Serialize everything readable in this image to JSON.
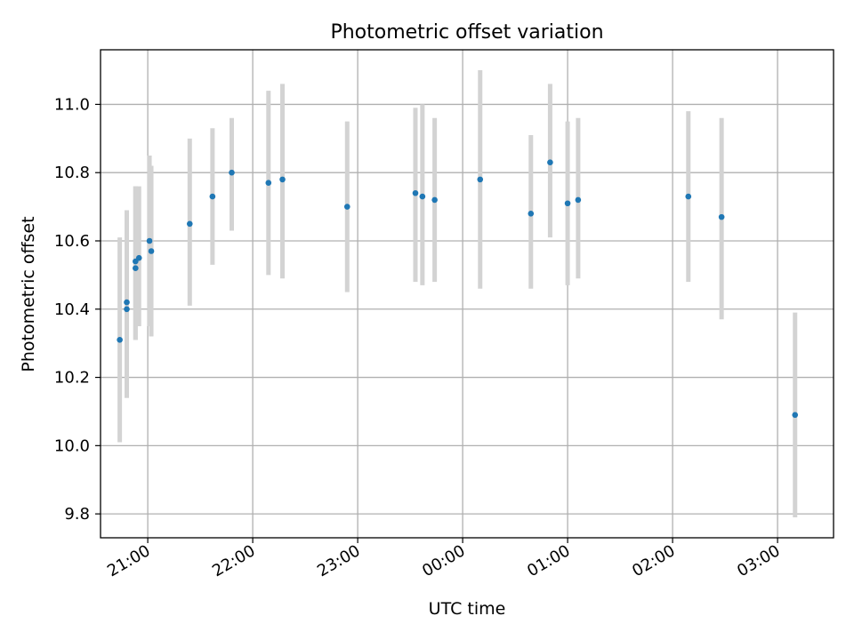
{
  "chart_data": {
    "type": "scatter",
    "title": "Photometric offset variation",
    "xlabel": "UTC time",
    "ylabel": "Photometric offset",
    "grid": true,
    "xlim": [
      "20:33",
      "03:32"
    ],
    "ylim": [
      9.73,
      11.16
    ],
    "x_ticks": [
      "21:00",
      "22:00",
      "23:00",
      "00:00",
      "01:00",
      "02:00",
      "03:00"
    ],
    "y_ticks": [
      "9.8",
      "10.0",
      "10.2",
      "10.4",
      "10.6",
      "10.8",
      "11.0"
    ],
    "colors": {
      "point": "#1f77b4",
      "errorbar": "#d3d3d3"
    },
    "series": [
      {
        "points": [
          {
            "x": "20:44",
            "y": 10.31,
            "ylow": 10.01,
            "yhigh": 10.61
          },
          {
            "x": "20:48",
            "y": 10.42,
            "ylow": 10.14,
            "yhigh": 10.69
          },
          {
            "x": "20:48",
            "y": 10.4,
            "ylow": 10.14,
            "yhigh": 10.67
          },
          {
            "x": "20:53",
            "y": 10.52,
            "ylow": 10.31,
            "yhigh": 10.76
          },
          {
            "x": "20:53",
            "y": 10.54,
            "ylow": 10.31,
            "yhigh": 10.76
          },
          {
            "x": "20:55",
            "y": 10.55,
            "ylow": 10.35,
            "yhigh": 10.76
          },
          {
            "x": "21:01",
            "y": 10.6,
            "ylow": 10.35,
            "yhigh": 10.85
          },
          {
            "x": "21:02",
            "y": 10.57,
            "ylow": 10.32,
            "yhigh": 10.82
          },
          {
            "x": "21:24",
            "y": 10.65,
            "ylow": 10.41,
            "yhigh": 10.9
          },
          {
            "x": "21:37",
            "y": 10.73,
            "ylow": 10.53,
            "yhigh": 10.93
          },
          {
            "x": "21:48",
            "y": 10.8,
            "ylow": 10.63,
            "yhigh": 10.96
          },
          {
            "x": "22:09",
            "y": 10.77,
            "ylow": 10.5,
            "yhigh": 11.04
          },
          {
            "x": "22:17",
            "y": 10.78,
            "ylow": 10.49,
            "yhigh": 11.06
          },
          {
            "x": "22:54",
            "y": 10.7,
            "ylow": 10.45,
            "yhigh": 10.95
          },
          {
            "x": "23:33",
            "y": 10.74,
            "ylow": 10.48,
            "yhigh": 10.99
          },
          {
            "x": "23:37",
            "y": 10.73,
            "ylow": 10.47,
            "yhigh": 11.0
          },
          {
            "x": "23:44",
            "y": 10.72,
            "ylow": 10.48,
            "yhigh": 10.96
          },
          {
            "x": "00:10",
            "y": 10.78,
            "ylow": 10.46,
            "yhigh": 11.1
          },
          {
            "x": "00:39",
            "y": 10.68,
            "ylow": 10.46,
            "yhigh": 10.91
          },
          {
            "x": "00:50",
            "y": 10.83,
            "ylow": 10.61,
            "yhigh": 11.06
          },
          {
            "x": "01:00",
            "y": 10.71,
            "ylow": 10.47,
            "yhigh": 10.95
          },
          {
            "x": "01:06",
            "y": 10.72,
            "ylow": 10.49,
            "yhigh": 10.96
          },
          {
            "x": "02:09",
            "y": 10.73,
            "ylow": 10.48,
            "yhigh": 10.98
          },
          {
            "x": "02:28",
            "y": 10.67,
            "ylow": 10.37,
            "yhigh": 10.96
          },
          {
            "x": "03:10",
            "y": 10.09,
            "ylow": 9.79,
            "yhigh": 10.39
          }
        ]
      }
    ]
  }
}
